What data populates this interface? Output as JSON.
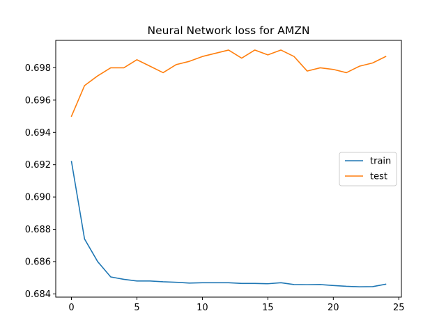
{
  "chart_data": {
    "type": "line",
    "title": "Neural Network loss for AMZN",
    "xlabel": "",
    "ylabel": "",
    "xlim": [
      -1.2,
      25.2
    ],
    "ylim": [
      0.6838,
      0.6997
    ],
    "x": [
      0,
      1,
      2,
      3,
      4,
      5,
      6,
      7,
      8,
      9,
      10,
      11,
      12,
      13,
      14,
      15,
      16,
      17,
      18,
      19,
      20,
      21,
      22,
      23,
      24
    ],
    "x_ticks": [
      0,
      5,
      10,
      15,
      20,
      25
    ],
    "x_tick_labels": [
      "0",
      "5",
      "10",
      "15",
      "20",
      "25"
    ],
    "y_ticks": [
      0.684,
      0.686,
      0.688,
      0.69,
      0.692,
      0.694,
      0.696,
      0.698
    ],
    "y_tick_labels": [
      "0.684",
      "0.686",
      "0.688",
      "0.690",
      "0.692",
      "0.694",
      "0.696",
      "0.698"
    ],
    "grid": false,
    "legend_placement": "center-right",
    "series": [
      {
        "name": "train",
        "color": "#1f77b4",
        "values": [
          0.6922,
          0.6874,
          0.686,
          0.68505,
          0.6849,
          0.6848,
          0.6848,
          0.68475,
          0.68472,
          0.68467,
          0.68469,
          0.68469,
          0.68469,
          0.68465,
          0.68465,
          0.68463,
          0.68469,
          0.68458,
          0.68457,
          0.68458,
          0.68452,
          0.68447,
          0.68444,
          0.68445,
          0.6846
        ]
      },
      {
        "name": "test",
        "color": "#ff7f0e",
        "values": [
          0.695,
          0.6969,
          0.6975,
          0.698,
          0.698,
          0.6985,
          0.6981,
          0.6977,
          0.6982,
          0.6984,
          0.6987,
          0.6989,
          0.6991,
          0.6986,
          0.6991,
          0.6988,
          0.6991,
          0.6987,
          0.6978,
          0.698,
          0.6979,
          0.6977,
          0.6981,
          0.6983,
          0.6987
        ]
      }
    ]
  }
}
